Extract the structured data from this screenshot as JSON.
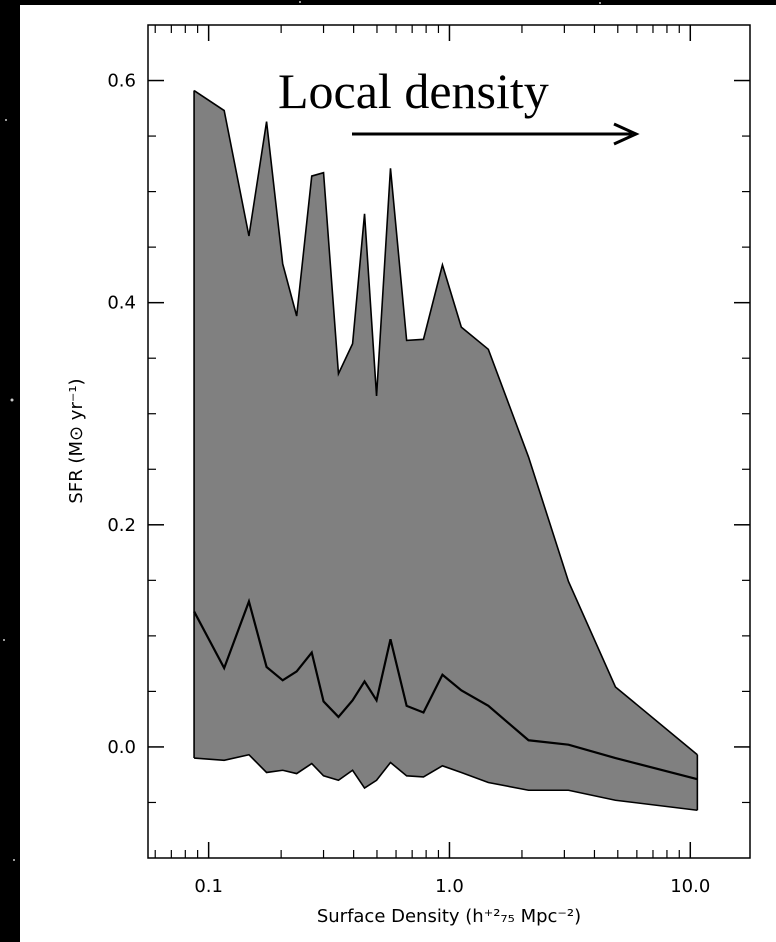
{
  "chart_data": {
    "type": "area",
    "annotation": "Local density",
    "xlabel": "Surface Density (h⁺²₇₅ Mpc⁻²)",
    "ylabel": "SFR (M⊙ yr⁻¹)",
    "xscale": "log",
    "xlim": [
      0.056,
      17.7
    ],
    "ylim": [
      -0.1,
      0.65
    ],
    "xticks": [
      0.1,
      {
        "value": 1,
        "label": "1.0"
      },
      {
        "value": 10,
        "label": "10.0"
      }
    ],
    "xminorticks": [
      0.06,
      0.07,
      0.08,
      0.09,
      0.2,
      0.3,
      0.4,
      0.5,
      0.6,
      0.7,
      0.8,
      0.9,
      2,
      3,
      4,
      5,
      6,
      7,
      8,
      9
    ],
    "yticks": [
      {
        "value": 0,
        "label": "0.0"
      },
      0.2,
      0.4,
      0.6
    ],
    "yminorticks": [
      -0.05,
      0.05,
      0.1,
      0.15,
      0.25,
      0.3,
      0.35,
      0.45,
      0.5,
      0.55
    ],
    "x": [
      0.087,
      0.116,
      0.147,
      0.174,
      0.203,
      0.232,
      0.268,
      0.3,
      0.346,
      0.396,
      0.444,
      0.498,
      0.569,
      0.664,
      0.78,
      0.935,
      1.12,
      1.45,
      2.13,
      3.12,
      4.89,
      10.7
    ],
    "band": {
      "color": "#808080",
      "upper": [
        0.591,
        0.573,
        0.46,
        0.563,
        0.435,
        0.388,
        0.514,
        0.517,
        0.336,
        0.363,
        0.48,
        0.316,
        0.521,
        0.366,
        0.367,
        0.434,
        0.378,
        0.358,
        0.261,
        0.149,
        0.054,
        -0.007
      ],
      "lower": [
        -0.01,
        -0.012,
        -0.007,
        -0.023,
        -0.021,
        -0.024,
        -0.015,
        -0.026,
        -0.03,
        -0.021,
        -0.037,
        -0.03,
        -0.014,
        -0.026,
        -0.027,
        -0.017,
        -0.023,
        -0.032,
        -0.039,
        -0.039,
        -0.048,
        -0.057
      ]
    },
    "line": {
      "color": "#000000",
      "values": [
        0.122,
        0.071,
        0.131,
        0.072,
        0.06,
        0.068,
        0.085,
        0.041,
        0.027,
        0.042,
        0.059,
        0.042,
        0.097,
        0.037,
        0.031,
        0.065,
        0.051,
        0.037,
        0.006,
        0.002,
        -0.01,
        -0.029
      ]
    }
  }
}
